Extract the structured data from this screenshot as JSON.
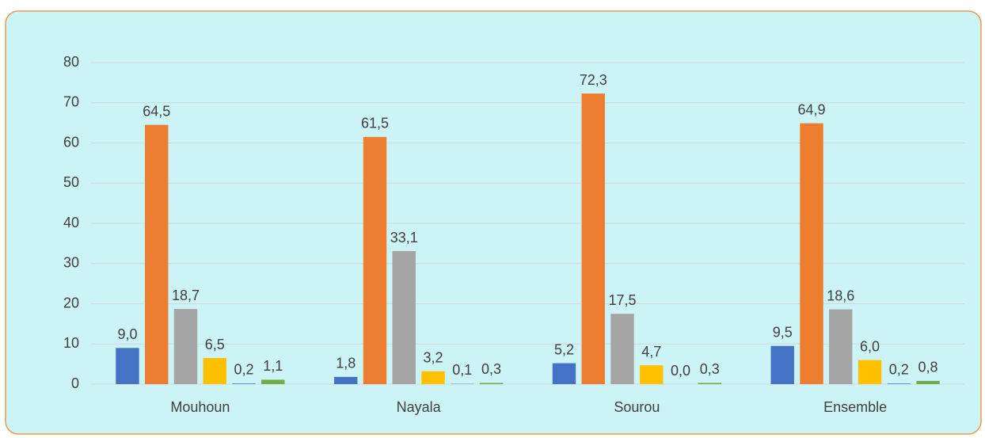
{
  "chart_data": {
    "type": "bar",
    "categories": [
      "Mouhoun",
      "Nayala",
      "Sourou",
      "Ensemble"
    ],
    "series": [
      {
        "color": "#4472c4",
        "values": [
          9.0,
          1.8,
          5.2,
          9.5
        ],
        "value_labels": [
          "9,0",
          "1,8",
          "5,2",
          "9,5"
        ]
      },
      {
        "color": "#ed7d31",
        "values": [
          64.5,
          61.5,
          72.3,
          64.9
        ],
        "value_labels": [
          "64,5",
          "61,5",
          "72,3",
          "64,9"
        ]
      },
      {
        "color": "#a5a5a5",
        "values": [
          18.7,
          33.1,
          17.5,
          18.6
        ],
        "value_labels": [
          "18,7",
          "33,1",
          "17,5",
          "18,6"
        ]
      },
      {
        "color": "#ffc000",
        "values": [
          6.5,
          3.2,
          4.7,
          6.0
        ],
        "value_labels": [
          "6,5",
          "3,2",
          "4,7",
          "6,0"
        ]
      },
      {
        "color": "#5b9bd5",
        "values": [
          0.2,
          0.1,
          0.0,
          0.2
        ],
        "value_labels": [
          "0,2",
          "0,1",
          "0,0",
          "0,2"
        ]
      },
      {
        "color": "#70ad47",
        "values": [
          1.1,
          0.3,
          0.3,
          0.8
        ],
        "value_labels": [
          "1,1",
          "0,3",
          "0,3",
          "0,8"
        ]
      }
    ],
    "ylim": [
      0,
      80
    ],
    "yticks": [
      0,
      10,
      20,
      30,
      40,
      50,
      60,
      70,
      80
    ],
    "grid": true
  }
}
